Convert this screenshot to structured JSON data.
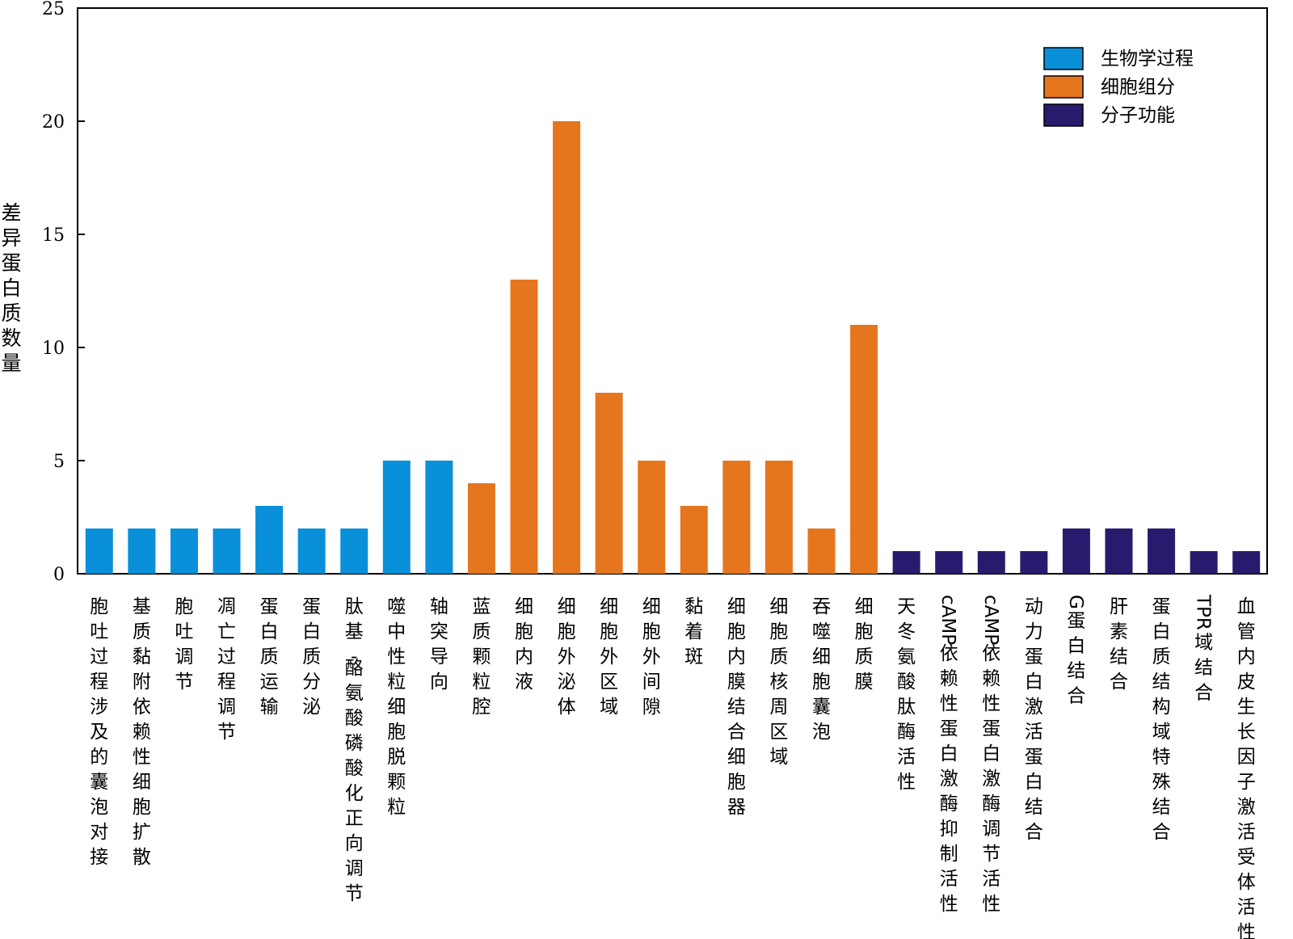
{
  "chart_data": {
    "type": "bar",
    "ylabel": "差异蛋白质数量",
    "ylim": [
      0,
      25
    ],
    "yticks": [
      0,
      5,
      10,
      15,
      20,
      25
    ],
    "grid": false,
    "legend_position": "top-right",
    "groups": [
      {
        "name": "生物学过程",
        "color": "#0a8fd9"
      },
      {
        "name": "细胞组分",
        "color": "#e6761e"
      },
      {
        "name": "分子功能",
        "color": "#2a1a6e"
      }
    ],
    "categories": [
      "胞吐过程涉及的囊泡对接",
      "基质黏附依赖性细胞扩散",
      "胞吐调节",
      "凋亡过程调节",
      "蛋白质运输",
      "蛋白质分泌",
      "肽基-酪氨酸磷酸化正向调节",
      "噬中性粒细胞脱颗粒",
      "轴突导向",
      "蓝质颗粒腔",
      "细胞内液",
      "细胞外泌体",
      "细胞外区域",
      "细胞外间隙",
      "黏着斑",
      "细胞内膜结合细胞器",
      "细胞质核周区域",
      "吞噬细胞囊泡",
      "细胞质膜",
      "天冬氨酸肽酶活性",
      "cAMP依赖性蛋白激酶抑制活性",
      "cAMP依赖性蛋白激酶调节活性",
      "动力蛋白激活蛋白结合",
      "G蛋白结合",
      "肝素结合",
      "蛋白质结构域特殊结合",
      "TPR域结合",
      "血管内皮生长因子激活受体活性"
    ],
    "values": [
      2,
      2,
      2,
      2,
      3,
      2,
      2,
      5,
      5,
      4,
      13,
      20,
      8,
      5,
      3,
      5,
      5,
      2,
      11,
      1,
      1,
      1,
      1,
      2,
      2,
      2,
      1,
      1
    ],
    "group_index": [
      0,
      0,
      0,
      0,
      0,
      0,
      0,
      0,
      0,
      1,
      1,
      1,
      1,
      1,
      1,
      1,
      1,
      1,
      1,
      2,
      2,
      2,
      2,
      2,
      2,
      2,
      2,
      2
    ]
  }
}
